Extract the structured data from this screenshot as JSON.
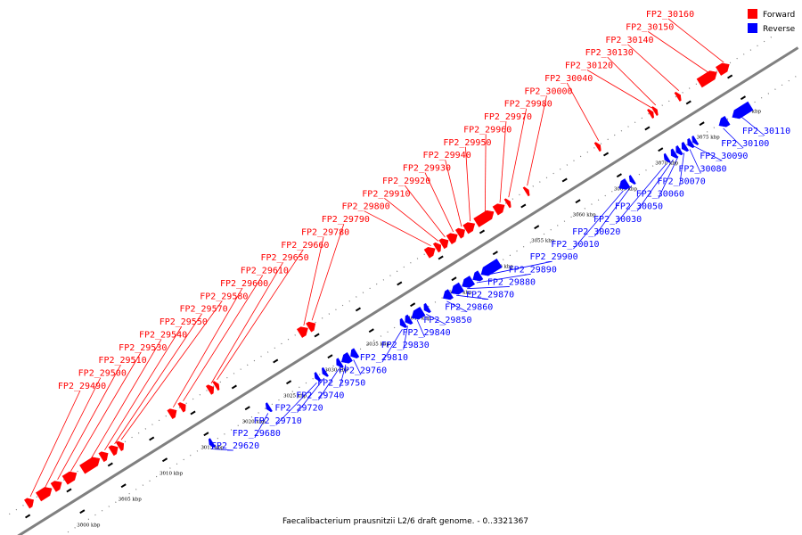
{
  "caption": "Faecalibacterium prausnitzii L2/6 draft genome. - 0..3321367",
  "legend": {
    "forward": {
      "label": "Forward",
      "color": "#ff0000"
    },
    "reverse": {
      "label": "Reverse",
      "color": "#0000ff"
    }
  },
  "axis": {
    "kbp_start": 2995,
    "kbp_end": 3080,
    "kbp_step": 5,
    "tick_labels": [
      "2995 kbp",
      "3000 kbp",
      "3005 kbp",
      "3010 kbp",
      "3015 kbp",
      "3020 kbp",
      "3025 kbp",
      "3030 kbp",
      "3035 kbp",
      "3040 kbp",
      "3045 kbp",
      "3050 kbp",
      "3055 kbp",
      "3060 kbp",
      "3065 kbp",
      "3070 kbp",
      "3075 kbp",
      "3080 kbp"
    ],
    "backbone_color": "#808080"
  },
  "forward_genes": [
    {
      "label": "FP2_29490",
      "s": 2995.6,
      "e": 2996.4
    },
    {
      "label": "FP2_29500",
      "s": 2997.0,
      "e": 2998.6
    },
    {
      "label": "FP2_29510",
      "s": 2998.8,
      "e": 2999.8
    },
    {
      "label": "FP2_29530",
      "s": 3000.2,
      "e": 3001.6
    },
    {
      "label": "FP2_29540",
      "s": 3002.3,
      "e": 3004.4
    },
    {
      "label": "FP2_29550",
      "s": 3004.6,
      "e": 3005.4
    },
    {
      "label": "FP2_29570",
      "s": 3005.8,
      "e": 3006.6
    },
    {
      "label": "FP2_29580",
      "s": 3006.7,
      "e": 3007.3
    },
    {
      "label": "FP2_29600",
      "s": 3012.9,
      "e": 3013.7
    },
    {
      "label": "FP2_29610",
      "s": 3014.2,
      "e": 3014.8
    },
    {
      "label": "FP2_29650",
      "s": 3017.6,
      "e": 3018.2
    },
    {
      "label": "FP2_29660",
      "s": 3018.4,
      "e": 3018.8
    },
    {
      "label": "FP2_29780",
      "s": 3028.6,
      "e": 3029.6
    },
    {
      "label": "FP2_29790",
      "s": 3029.7,
      "e": 3030.5
    },
    {
      "label": "FP2_29800",
      "s": 3044.0,
      "e": 3045.0
    },
    {
      "label": "FP2_29910",
      "s": 3045.1,
      "e": 3045.7
    },
    {
      "label": "FP2_29920",
      "s": 3045.8,
      "e": 3046.6
    },
    {
      "label": "FP2_29930",
      "s": 3046.7,
      "e": 3047.7
    },
    {
      "label": "FP2_29940",
      "s": 3047.8,
      "e": 3048.6
    },
    {
      "label": "FP2_29950",
      "s": 3048.7,
      "e": 3049.8
    },
    {
      "label": "FP2_29960",
      "s": 3050.0,
      "e": 3052.1
    },
    {
      "label": "FP2_29970",
      "s": 3052.3,
      "e": 3053.4
    },
    {
      "label": "FP2_29980",
      "s": 3053.7,
      "e": 3054.1
    },
    {
      "label": "FP2_30000",
      "s": 3056.0,
      "e": 3056.3
    },
    {
      "label": "FP2_30040",
      "s": 3064.6,
      "e": 3065.0
    },
    {
      "label": "FP2_30120",
      "s": 3071.0,
      "e": 3071.4
    },
    {
      "label": "FP2_30130",
      "s": 3071.6,
      "e": 3071.8
    },
    {
      "label": "FP2_30140",
      "s": 3074.3,
      "e": 3074.7
    },
    {
      "label": "FP2_30150",
      "s": 3077.0,
      "e": 3079.1
    },
    {
      "label": "FP2_30160",
      "s": 3079.3,
      "e": 3080.6
    }
  ],
  "reverse_genes": [
    {
      "label": "FP2_29620",
      "s": 3014.7,
      "e": 3015.1
    },
    {
      "label": "FP2_29680",
      "s": 3021.6,
      "e": 3022.0
    },
    {
      "label": "FP2_29710",
      "s": 3027.5,
      "e": 3027.9
    },
    {
      "label": "FP2_29720",
      "s": 3028.4,
      "e": 3028.8
    },
    {
      "label": "FP2_29740",
      "s": 3030.1,
      "e": 3030.6
    },
    {
      "label": "FP2_29750",
      "s": 3030.7,
      "e": 3031.7
    },
    {
      "label": "FP2_29760",
      "s": 3031.8,
      "e": 3032.5
    },
    {
      "label": "FP2_29810",
      "s": 3037.8,
      "e": 3038.3
    },
    {
      "label": "FP2_29830",
      "s": 3038.4,
      "e": 3039.0
    },
    {
      "label": "FP2_29840",
      "s": 3039.2,
      "e": 3040.5
    },
    {
      "label": "FP2_29850",
      "s": 3040.7,
      "e": 3041.2
    },
    {
      "label": "FP2_29860",
      "s": 3043.0,
      "e": 3043.9
    },
    {
      "label": "FP2_29870",
      "s": 3044.0,
      "e": 3045.2
    },
    {
      "label": "FP2_29880",
      "s": 3045.3,
      "e": 3046.5
    },
    {
      "label": "FP2_29890",
      "s": 3046.6,
      "e": 3047.5
    },
    {
      "label": "FP2_29900",
      "s": 3047.6,
      "e": 3049.8
    },
    {
      "label": "FP2_30010",
      "s": 3064.3,
      "e": 3065.3
    },
    {
      "label": "FP2_30020",
      "s": 3065.6,
      "e": 3066.0
    },
    {
      "label": "FP2_30030",
      "s": 3069.8,
      "e": 3070.2
    },
    {
      "label": "FP2_30050",
      "s": 3070.6,
      "e": 3071.1
    },
    {
      "label": "FP2_30060",
      "s": 3071.2,
      "e": 3071.7
    },
    {
      "label": "FP2_30070",
      "s": 3071.9,
      "e": 3072.4
    },
    {
      "label": "FP2_30080",
      "s": 3072.6,
      "e": 3073.1
    },
    {
      "label": "FP2_30090",
      "s": 3073.2,
      "e": 3073.6
    },
    {
      "label": "FP2_30100",
      "s": 3076.4,
      "e": 3077.4
    },
    {
      "label": "FP2_30110",
      "s": 3078.0,
      "e": 3080.2
    }
  ]
}
